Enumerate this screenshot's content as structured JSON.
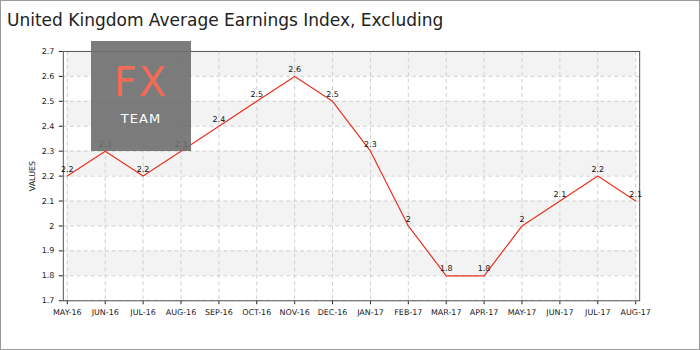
{
  "chart_data": {
    "type": "line",
    "title": "United Kingdom Average Earnings Index, Excluding",
    "y_label": "VALUES",
    "watermark": [
      "FX",
      "TEAM"
    ],
    "categories": [
      "MAY-16",
      "JUN-16",
      "JUL-16",
      "AUG-16",
      "SEP-16",
      "OCT-16",
      "NOV-16",
      "DEC-16",
      "JAN-17",
      "FEB-17",
      "MAR-17",
      "APR-17",
      "MAY-17",
      "JUN-17",
      "JUL-17",
      "AUG-17"
    ],
    "values": [
      2.2,
      2.3,
      2.2,
      2.3,
      2.4,
      2.5,
      2.6,
      2.5,
      2.3,
      2,
      1.8,
      1.8,
      2,
      2.1,
      2.2,
      2.1
    ],
    "color": "#e8321e",
    "ylim": [
      1.7,
      2.7
    ],
    "yticks": [
      1.7,
      1.8,
      1.9,
      2,
      2.1,
      2.2,
      2.3,
      2.4,
      2.5,
      2.6,
      2.7
    ],
    "grid": true,
    "data_labels": true
  }
}
